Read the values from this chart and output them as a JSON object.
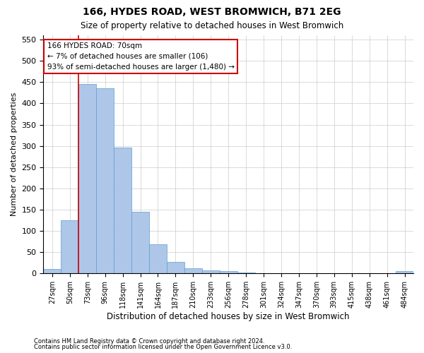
{
  "title1": "166, HYDES ROAD, WEST BROMWICH, B71 2EG",
  "title2": "Size of property relative to detached houses in West Bromwich",
  "xlabel": "Distribution of detached houses by size in West Bromwich",
  "ylabel": "Number of detached properties",
  "footnote1": "Contains HM Land Registry data © Crown copyright and database right 2024.",
  "footnote2": "Contains public sector information licensed under the Open Government Licence v3.0.",
  "bin_labels": [
    "27sqm",
    "50sqm",
    "73sqm",
    "96sqm",
    "118sqm",
    "141sqm",
    "164sqm",
    "187sqm",
    "210sqm",
    "233sqm",
    "256sqm",
    "278sqm",
    "301sqm",
    "324sqm",
    "347sqm",
    "370sqm",
    "393sqm",
    "415sqm",
    "438sqm",
    "461sqm",
    "484sqm"
  ],
  "bar_values": [
    10,
    125,
    445,
    435,
    296,
    145,
    68,
    27,
    13,
    8,
    5,
    2,
    1,
    1,
    1,
    1,
    0,
    1,
    0,
    0,
    5
  ],
  "bar_color": "#aec6e8",
  "bar_edge_color": "#5a9fd4",
  "ylim": [
    0,
    560
  ],
  "yticks": [
    0,
    50,
    100,
    150,
    200,
    250,
    300,
    350,
    400,
    450,
    500,
    550
  ],
  "vline_x": 1.5,
  "annotation_text": "166 HYDES ROAD: 70sqm\n← 7% of detached houses are smaller (106)\n93% of semi-detached houses are larger (1,480) →",
  "annotation_box_color": "#ffffff",
  "annotation_box_edge": "#cc0000",
  "vline_color": "#cc0000",
  "background_color": "#ffffff",
  "grid_color": "#cccccc"
}
